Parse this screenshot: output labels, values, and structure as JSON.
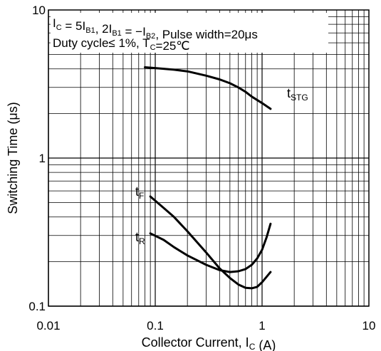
{
  "chart_data": {
    "type": "line",
    "x_scale": "log",
    "y_scale": "log",
    "xlim": [
      0.01,
      10
    ],
    "ylim": [
      0.1,
      10
    ],
    "grid": true,
    "xlabel": "Collector Current, I_C (A)",
    "ylabel": "Switching Time (μs)",
    "x_ticks": [
      "0.01",
      "0.1",
      "1",
      "10"
    ],
    "y_ticks": [
      "0.1",
      "1",
      "10"
    ],
    "annotations": [
      "I_C = 5I_B1, 2I_B1 = −I_B2, Pulse width=20μs",
      "Duty cycle≤ 1%, T_C=25℃"
    ],
    "series": [
      {
        "name": "t_STG",
        "x": [
          0.08,
          0.1,
          0.15,
          0.2,
          0.3,
          0.4,
          0.5,
          0.6,
          0.7,
          0.8,
          1.0,
          1.2
        ],
        "y": [
          4.1,
          4.05,
          3.95,
          3.85,
          3.6,
          3.4,
          3.2,
          3.0,
          2.8,
          2.6,
          2.35,
          2.15
        ]
      },
      {
        "name": "t_F",
        "x": [
          0.09,
          0.12,
          0.15,
          0.2,
          0.3,
          0.4,
          0.5,
          0.6,
          0.7,
          0.8,
          0.9,
          1.0,
          1.2
        ],
        "y": [
          0.55,
          0.46,
          0.4,
          0.32,
          0.23,
          0.18,
          0.155,
          0.14,
          0.133,
          0.132,
          0.135,
          0.145,
          0.17
        ]
      },
      {
        "name": "t_R",
        "x": [
          0.09,
          0.12,
          0.15,
          0.2,
          0.3,
          0.4,
          0.5,
          0.6,
          0.7,
          0.8,
          0.9,
          1.0,
          1.1,
          1.2
        ],
        "y": [
          0.31,
          0.28,
          0.25,
          0.22,
          0.19,
          0.175,
          0.17,
          0.172,
          0.178,
          0.19,
          0.21,
          0.24,
          0.29,
          0.36
        ]
      }
    ]
  }
}
